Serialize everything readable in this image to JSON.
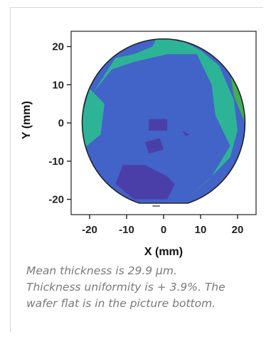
{
  "chart_data": {
    "type": "heatmap",
    "title": "",
    "xlabel": "X (mm)",
    "ylabel": "Y (mm)",
    "xlim": [
      -25,
      25
    ],
    "ylim": [
      -24,
      24
    ],
    "x_ticks": [
      -20,
      -10,
      0,
      10,
      20
    ],
    "y_ticks": [
      20,
      10,
      0,
      -10,
      -20
    ],
    "x_tick_labels": [
      "-20",
      "-10",
      "0",
      "10",
      "20"
    ],
    "y_tick_labels": [
      "20-",
      "10-",
      "0-",
      "-10-",
      "-20-"
    ],
    "wafer": {
      "shape": "circle with flat",
      "radius_mm": 22,
      "flat_at": "bottom",
      "flat_y_mm": -21
    },
    "legend": "none",
    "grid": false,
    "level_colors": [
      "#4a3fa8",
      "#4263c8",
      "#2db497",
      "#3fae56"
    ],
    "regions": [
      {
        "name": "high-thickness-right-edge",
        "color": "#3fae56",
        "polygon": [
          [
            8,
            21
          ],
          [
            14,
            18
          ],
          [
            18,
            13
          ],
          [
            19,
            7
          ],
          [
            22,
            0
          ],
          [
            21,
            12
          ],
          [
            16,
            19
          ]
        ]
      },
      {
        "name": "upper-green-ring",
        "color": "#2db497",
        "polygon": [
          [
            -13,
            17
          ],
          [
            -8,
            18
          ],
          [
            -3,
            20
          ],
          [
            -2,
            22
          ],
          [
            1,
            22
          ],
          [
            6,
            21
          ],
          [
            10,
            19
          ],
          [
            15,
            15
          ],
          [
            19,
            6
          ],
          [
            20,
            -2
          ],
          [
            18,
            -9
          ],
          [
            12,
            -15
          ],
          [
            6,
            -20
          ],
          [
            13,
            -14
          ],
          [
            18,
            -6
          ],
          [
            14,
            2
          ],
          [
            13,
            10
          ],
          [
            9,
            18
          ],
          [
            1,
            18
          ],
          [
            -8,
            16
          ],
          [
            -14,
            14
          ],
          [
            -19,
            8
          ]
        ]
      },
      {
        "name": "left-green-edge",
        "color": "#2db497",
        "polygon": [
          [
            -20,
            9
          ],
          [
            -22,
            2
          ],
          [
            -22,
            -7
          ],
          [
            -17,
            -3
          ],
          [
            -16,
            5
          ]
        ]
      },
      {
        "name": "low-thickness-center",
        "color": "#4a3fa8",
        "polygon": [
          [
            -4,
            1
          ],
          [
            1,
            1
          ],
          [
            1,
            -2
          ],
          [
            -4,
            -2
          ]
        ]
      },
      {
        "name": "low-thickness-mid",
        "color": "#4a3fa8",
        "polygon": [
          [
            -5,
            -5
          ],
          [
            -1,
            -4
          ],
          [
            0,
            -7
          ],
          [
            -4,
            -8
          ]
        ]
      },
      {
        "name": "low-thickness-lower",
        "color": "#4a3fa8",
        "polygon": [
          [
            -11,
            -11
          ],
          [
            -5,
            -11
          ],
          [
            1,
            -14
          ],
          [
            3,
            -16
          ],
          [
            1,
            -20
          ],
          [
            -8,
            -20
          ],
          [
            -13,
            -16
          ]
        ]
      },
      {
        "name": "low-thickness-speck",
        "color": "#4a3fa8",
        "polygon": [
          [
            5,
            -2
          ],
          [
            7,
            -3
          ],
          [
            6,
            -3.5
          ]
        ]
      }
    ],
    "fill_color": "#4263c8"
  },
  "caption": {
    "line1": "Mean thickness is 29.9 μm.",
    "line2": "Thickness uniformity is + 3.9%. The",
    "line3": "wafer flat is in the picture bottom."
  }
}
